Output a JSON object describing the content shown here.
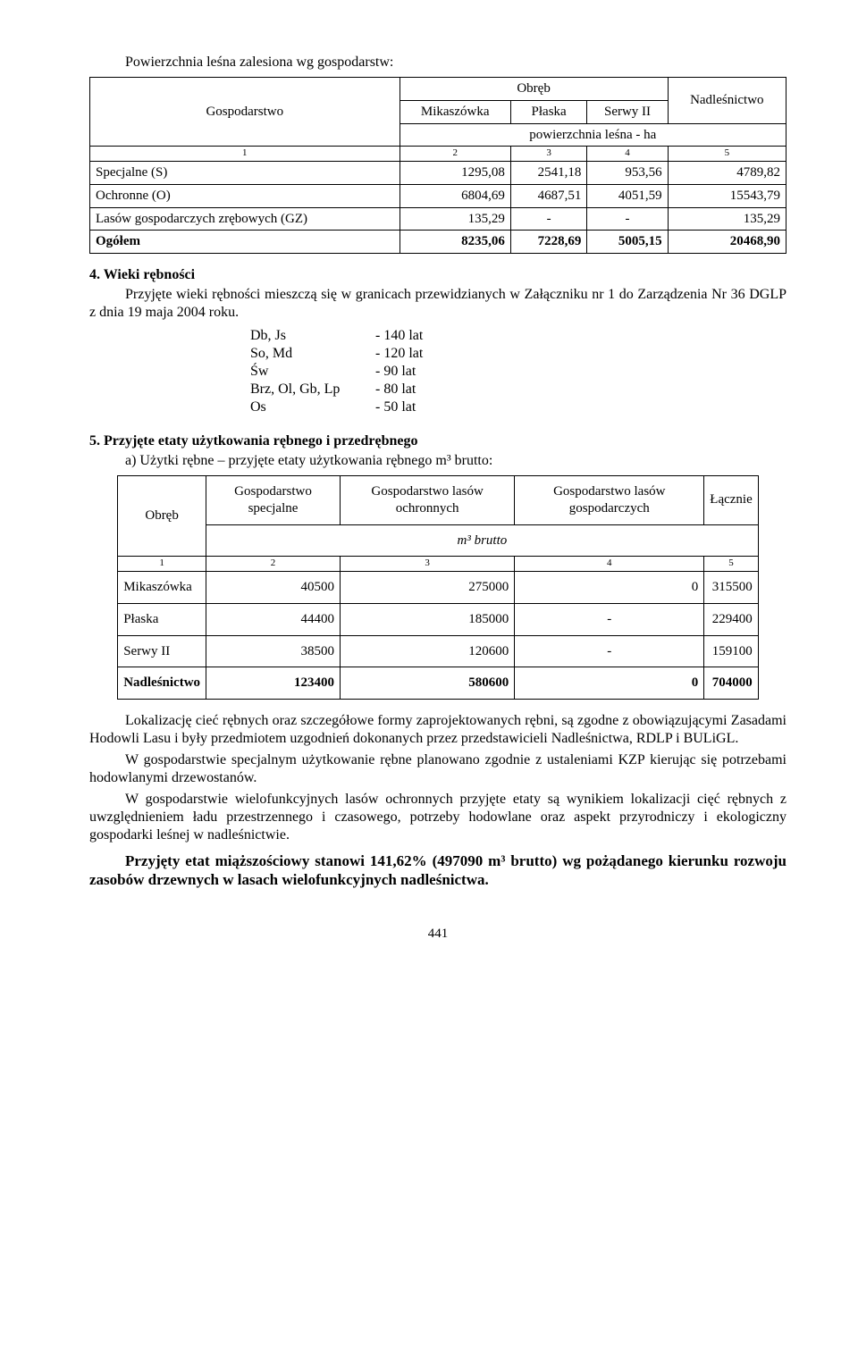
{
  "intro": "Powierzchnia leśna zalesiona wg gospodarstw:",
  "table1": {
    "h_gosp": "Gospodarstwo",
    "h_obreb": "Obręb",
    "h_nad": "Nadleśnictwo",
    "h_mik": "Mikaszówka",
    "h_pla": "Płaska",
    "h_ser": "Serwy II",
    "h_pow": "powierzchnia leśna - ha",
    "nums": [
      "1",
      "2",
      "3",
      "4",
      "5"
    ],
    "rows": [
      {
        "label": "Specjalne (S)",
        "c2": "1295,08",
        "c3": "2541,18",
        "c4": "953,56",
        "c5": "4789,82"
      },
      {
        "label": "Ochronne (O)",
        "c2": "6804,69",
        "c3": "4687,51",
        "c4": "4051,59",
        "c5": "15543,79"
      },
      {
        "label": "Lasów gospodarczych zrębowych (GZ)",
        "c2": "135,29",
        "c3": "-",
        "c4": "-",
        "c5": "135,29"
      }
    ],
    "total": {
      "label": "Ogółem",
      "c2": "8235,06",
      "c3": "7228,69",
      "c4": "5005,15",
      "c5": "20468,90"
    }
  },
  "sec4": {
    "title": "4. Wieki rębności",
    "para": "Przyjęte wieki rębności mieszczą się w granicach przewidzianych w Załączniku nr 1 do Zarządzenia Nr 36 DGLP z dnia 19 maja 2004 roku.",
    "species": [
      {
        "sp": "Db, Js",
        "age": "- 140 lat"
      },
      {
        "sp": "So, Md",
        "age": "- 120 lat"
      },
      {
        "sp": "Św",
        "age": "-  90 lat"
      },
      {
        "sp": "Brz, Ol, Gb, Lp",
        "age": "-  80 lat"
      },
      {
        "sp": "Os",
        "age": "-  50 lat"
      }
    ]
  },
  "sec5": {
    "title": "5. Przyjęte etaty użytkowania rębnego i przedrębnego",
    "sub": "a) Użytki rębne – przyjęte etaty użytkowania rębnego m³ brutto:"
  },
  "table2": {
    "h_obreb": "Obręb",
    "h_spec": "Gospodarstwo specjalne",
    "h_ochr": "Gospodarstwo lasów ochronnych",
    "h_gosp": "Gospodarstwo lasów gospodarczych",
    "h_lacz": "Łącznie",
    "h_unit": "m³ brutto",
    "nums": [
      "1",
      "2",
      "3",
      "4",
      "5"
    ],
    "rows": [
      {
        "label": "Mikaszówka",
        "c2": "40500",
        "c3": "275000",
        "c4": "0",
        "c5": "315500"
      },
      {
        "label": "Płaska",
        "c2": "44400",
        "c3": "185000",
        "c4": "-",
        "c5": "229400"
      },
      {
        "label": "Serwy II",
        "c2": "38500",
        "c3": "120600",
        "c4": "-",
        "c5": "159100"
      }
    ],
    "total": {
      "label": "Nadleśnictwo",
      "c2": "123400",
      "c3": "580600",
      "c4": "0",
      "c5": "704000"
    }
  },
  "para_after": [
    "Lokalizację cieć rębnych oraz szczegółowe formy zaprojektowanych rębni, są zgodne z obowiązującymi Zasadami Hodowli Lasu i były przedmiotem uzgodnień dokonanych przez przedstawicieli Nadleśnictwa, RDLP i BULiGL.",
    "W gospodarstwie specjalnym użytkowanie rębne planowano zgodnie z ustaleniami KZP kierując się potrzebami hodowlanymi drzewostanów.",
    "W gospodarstwie wielofunkcyjnych lasów ochronnych przyjęte etaty są wynikiem lokalizacji cięć rębnych z uwzględnieniem ładu przestrzennego i czasowego, potrzeby hodowlane oraz aspekt przyrodniczy i ekologiczny gospodarki leśnej w nadleśnictwie."
  ],
  "bold_final": "Przyjęty etat miąższościowy stanowi 141,62% (497090 m³ brutto) wg pożądanego kierunku rozwoju zasobów drzewnych w lasach wielofunkcyjnych nadleśnictwa.",
  "page": "441"
}
